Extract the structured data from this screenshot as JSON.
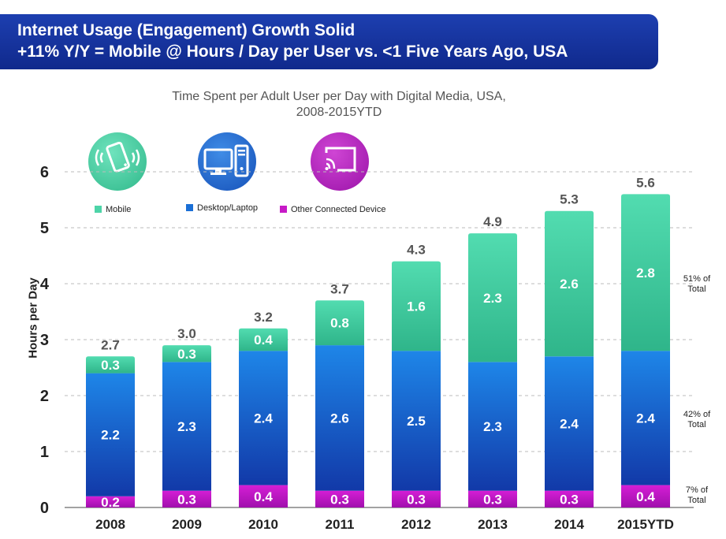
{
  "header": {
    "title_line1": "Internet Usage (Engagement) Growth Solid",
    "title_line2": "+11% Y/Y = Mobile @ Hours / Day per User vs. <1 Five Years Ago, USA"
  },
  "chart_data": {
    "type": "bar",
    "stacked": true,
    "title": "Time Spent per Adult User per Day with Digital Media, USA,",
    "subtitle": "2008-2015YTD",
    "xlabel": "",
    "ylabel": "Hours per Day",
    "ylim": [
      0,
      6
    ],
    "yticks": [
      0,
      1,
      2,
      3,
      4,
      5,
      6
    ],
    "grid": true,
    "legend_position": "top-left",
    "categories": [
      "2008",
      "2009",
      "2010",
      "2011",
      "2012",
      "2013",
      "2014",
      "2015YTD"
    ],
    "series": [
      {
        "name": "Other Connected Device",
        "color": "#c71ac7",
        "values": [
          0.2,
          0.3,
          0.4,
          0.3,
          0.3,
          0.3,
          0.3,
          0.4
        ]
      },
      {
        "name": "Desktop/Laptop",
        "color": "#1a6fd6",
        "values": [
          2.2,
          2.3,
          2.4,
          2.6,
          2.5,
          2.3,
          2.4,
          2.4
        ]
      },
      {
        "name": "Mobile",
        "color": "#4dd4a8",
        "values": [
          0.3,
          0.3,
          0.4,
          0.8,
          1.6,
          2.3,
          2.6,
          2.8
        ]
      }
    ],
    "totals": [
      "2.7",
      "3.0",
      "3.2",
      "3.7",
      "4.3",
      "4.9",
      "5.3",
      "5.6"
    ],
    "annotations": [
      {
        "line1": "51% of",
        "line2": "Total"
      },
      {
        "line1": "42% of",
        "line2": "Total"
      },
      {
        "line1": "7% of",
        "line2": "Total"
      }
    ]
  },
  "legend": {
    "mobile": "Mobile",
    "desktop": "Desktop/Laptop",
    "other": "Other Connected Device"
  },
  "icons": [
    "mobile-phone-icon",
    "desktop-computer-icon",
    "connected-tv-icon"
  ],
  "colors": {
    "banner": "#1a36a0",
    "mobile": "#4dd4a8",
    "desktop": "#1a6fd6",
    "other": "#c71ac7"
  }
}
